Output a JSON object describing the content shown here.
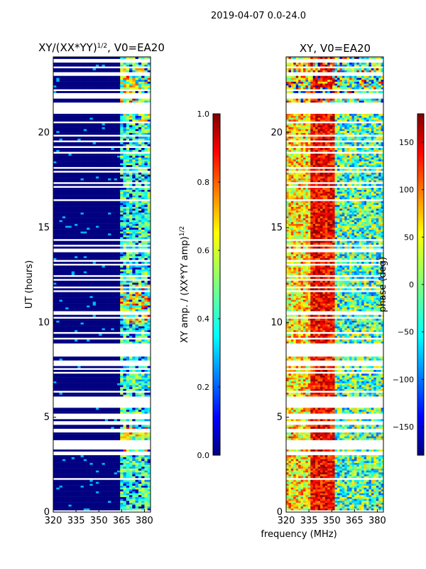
{
  "figure": {
    "suptitle": "2019-04-07 0.0-24.0",
    "xlabel": "frequency (MHz)"
  },
  "chart_data": [
    {
      "type": "heatmap",
      "title_main": "XY/(XX*YY)",
      "title_sup": "1/2",
      "title_rest": ", V0=EA20",
      "xlabel": "",
      "ylabel": "UT (hours)",
      "xlim": [
        320,
        384
      ],
      "ylim": [
        0,
        24
      ],
      "xticks": [
        320,
        335,
        350,
        365,
        380
      ],
      "yticks": [
        0,
        5,
        10,
        15,
        20
      ],
      "colorbar": {
        "label_main": "XY amp. / (XX*YY amp)",
        "label_sup": "1/2",
        "range": [
          0.0,
          1.0
        ],
        "ticks": [
          "0.0",
          "0.2",
          "0.4",
          "0.6",
          "0.8",
          "1.0"
        ]
      }
    },
    {
      "type": "heatmap",
      "title": "XY, V0=EA20",
      "xlabel": "frequency (MHz)",
      "ylabel": "",
      "xlim": [
        320,
        384
      ],
      "ylim": [
        0,
        24
      ],
      "xticks": [
        320,
        335,
        350,
        365,
        380
      ],
      "yticks": [
        0,
        5,
        10,
        15,
        20
      ],
      "colorbar": {
        "label": "phase (deg)",
        "range": [
          -180,
          180
        ],
        "ticks": [
          "−150",
          "−100",
          "−50",
          "0",
          "50",
          "100",
          "150"
        ]
      }
    }
  ],
  "colors": {
    "jet": [
      "#00007f",
      "#0000ff",
      "#007fff",
      "#00ffff",
      "#7fff7f",
      "#ffff00",
      "#ff7f00",
      "#ff0000",
      "#7f0000"
    ]
  }
}
